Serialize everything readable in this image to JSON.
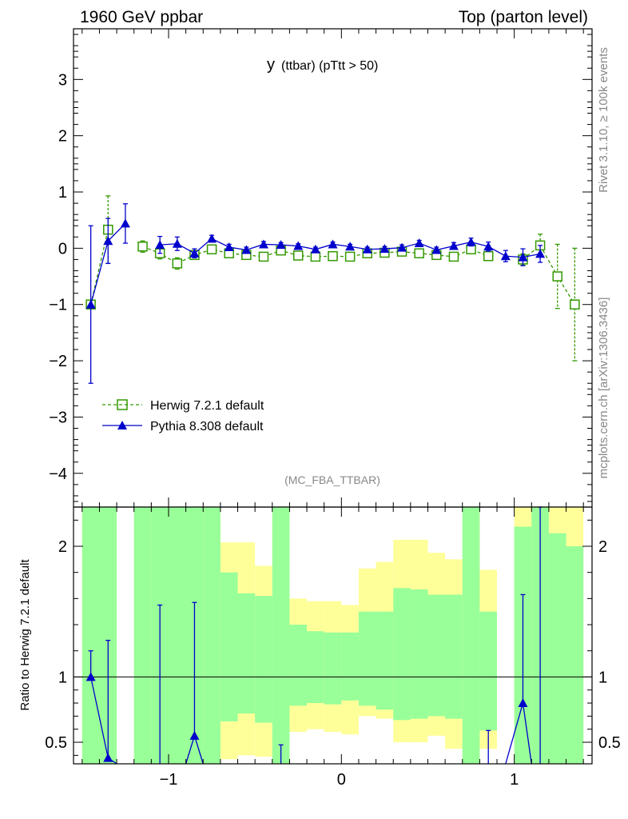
{
  "header": {
    "left": "1960 GeV ppbar",
    "right": "Top (parton level)"
  },
  "side_labels": {
    "rivet": "Rivet 3.1.10, ≥ 100k events",
    "mcplots": "mcplots.cern.ch [arXiv:1306.3436]"
  },
  "chart_data": [
    {
      "type": "line",
      "title": "y (ttbar) (pTtt > 50)",
      "title_main": "y",
      "title_sub": "(ttbar) (pTtt > 50)",
      "watermark": "(MC_FBA_TTBAR)",
      "xlabel": "",
      "ylabel": "",
      "xlim": [
        -1.55,
        1.45
      ],
      "ylim": [
        -4.6,
        3.9
      ],
      "x_ticks": [
        "−1",
        "0",
        "1"
      ],
      "y_ticks": [
        "−4",
        "−3",
        "−2",
        "−1",
        "0",
        "1",
        "2",
        "3"
      ],
      "legend_position": "bottom-left",
      "x": [
        -1.45,
        -1.35,
        -1.25,
        -1.15,
        -1.05,
        -0.95,
        -0.85,
        -0.75,
        -0.65,
        -0.55,
        -0.45,
        -0.35,
        -0.25,
        -0.15,
        -0.05,
        0.05,
        0.15,
        0.25,
        0.35,
        0.45,
        0.55,
        0.65,
        0.75,
        0.85,
        0.95,
        1.05,
        1.15,
        1.25,
        1.35
      ],
      "series": [
        {
          "name": "Herwig 7.2.1 default",
          "color": "#339900",
          "marker": "open-square",
          "dashed": true,
          "values": [
            -1.0,
            0.33,
            null,
            0.03,
            -0.09,
            -0.27,
            -0.12,
            -0.02,
            -0.09,
            -0.12,
            -0.15,
            -0.04,
            -0.13,
            -0.15,
            -0.14,
            -0.15,
            -0.09,
            -0.08,
            -0.06,
            -0.09,
            -0.12,
            -0.15,
            -0.02,
            -0.14,
            null,
            -0.2,
            0.05,
            -0.5,
            -1.0
          ],
          "errors": [
            0.0,
            0.6,
            null,
            0.1,
            0.1,
            0.1,
            0.06,
            0.06,
            0.05,
            0.05,
            0.05,
            0.04,
            0.04,
            0.04,
            0.04,
            0.04,
            0.04,
            0.04,
            0.05,
            0.05,
            0.05,
            0.05,
            0.06,
            0.06,
            null,
            0.1,
            0.2,
            0.57,
            1.0
          ]
        },
        {
          "name": "Pythia 8.308 default",
          "color": "#0000cc",
          "marker": "filled-triangle",
          "dashed": false,
          "values": [
            -1.0,
            0.13,
            0.44,
            null,
            0.06,
            0.08,
            -0.09,
            0.17,
            0.02,
            -0.03,
            0.07,
            0.06,
            0.04,
            -0.02,
            0.07,
            0.03,
            -0.02,
            -0.01,
            0.01,
            0.09,
            -0.03,
            0.04,
            0.11,
            0.03,
            -0.14,
            -0.16,
            -0.1,
            null,
            null
          ],
          "errors": [
            1.4,
            0.4,
            0.35,
            null,
            0.15,
            0.12,
            0.08,
            0.06,
            0.05,
            0.05,
            0.05,
            0.04,
            0.04,
            0.04,
            0.04,
            0.04,
            0.04,
            0.04,
            0.05,
            0.05,
            0.05,
            0.06,
            0.07,
            0.08,
            0.1,
            0.15,
            0.15,
            null,
            null
          ]
        }
      ]
    },
    {
      "type": "line",
      "ylabel": "Ratio to Herwig 7.2.1 default",
      "xlim": [
        -1.55,
        1.45
      ],
      "ylim": [
        0.335,
        2.3
      ],
      "x_ticks": [
        "−1",
        "0",
        "1"
      ],
      "y_ticks": [
        "0.5",
        "1",
        "2"
      ],
      "reference": 1.0,
      "band_x_edges": [
        -1.5,
        -1.4,
        -1.3,
        -1.2,
        -1.1,
        -1.0,
        -0.9,
        -0.8,
        -0.7,
        -0.6,
        -0.5,
        -0.4,
        -0.3,
        -0.2,
        -0.1,
        0.0,
        0.1,
        0.2,
        0.3,
        0.4,
        0.5,
        0.6,
        0.7,
        0.8,
        0.9,
        1.0,
        1.1,
        1.2,
        1.3,
        1.4
      ],
      "band_yellow": [
        [
          0.335,
          2.3
        ],
        [
          0.335,
          2.3
        ],
        null,
        [
          0.335,
          2.3
        ],
        [
          0.335,
          2.3
        ],
        [
          0.335,
          1.86
        ],
        [
          0.335,
          2.3
        ],
        [
          0.335,
          2.3
        ],
        [
          0.37,
          2.03
        ],
        [
          0.4,
          2.03
        ],
        [
          0.39,
          1.85
        ],
        [
          0.335,
          2.3
        ],
        [
          0.58,
          1.6
        ],
        [
          0.6,
          1.58
        ],
        [
          0.58,
          1.58
        ],
        [
          0.56,
          1.55
        ],
        [
          0.7,
          1.83
        ],
        [
          0.68,
          1.88
        ],
        [
          0.5,
          2.05
        ],
        [
          0.5,
          2.05
        ],
        [
          0.55,
          1.95
        ],
        [
          0.45,
          1.9
        ],
        [
          0.335,
          2.3
        ],
        [
          0.45,
          1.82
        ],
        null,
        [
          0.335,
          2.3
        ],
        [
          0.335,
          2.3
        ],
        [
          0.335,
          2.3
        ],
        [
          0.335,
          2.3
        ]
      ],
      "band_green": [
        [
          0.335,
          2.3
        ],
        [
          0.335,
          2.3
        ],
        null,
        [
          0.335,
          2.3
        ],
        [
          0.335,
          2.3
        ],
        [
          0.335,
          2.3
        ],
        [
          0.335,
          2.3
        ],
        [
          0.335,
          2.3
        ],
        [
          0.66,
          1.8
        ],
        [
          0.72,
          1.64
        ],
        [
          0.65,
          1.62
        ],
        [
          0.335,
          2.3
        ],
        [
          0.78,
          1.4
        ],
        [
          0.8,
          1.35
        ],
        [
          0.79,
          1.34
        ],
        [
          0.82,
          1.34
        ],
        [
          0.78,
          1.5
        ],
        [
          0.75,
          1.5
        ],
        [
          0.67,
          1.68
        ],
        [
          0.68,
          1.67
        ],
        [
          0.7,
          1.63
        ],
        [
          0.68,
          1.63
        ],
        [
          0.335,
          2.3
        ],
        [
          0.59,
          1.5
        ],
        null,
        [
          0.335,
          2.15
        ],
        [
          0.335,
          2.3
        ],
        [
          0.335,
          2.1
        ],
        [
          0.335,
          2.0
        ]
      ],
      "series": [
        {
          "name": "Pythia 8.308 default",
          "color": "#0000cc",
          "x": [
            -1.45,
            -1.35,
            -1.05,
            -0.85,
            -0.35,
            0.85,
            1.05,
            1.15
          ],
          "values": [
            1.0,
            0.38,
            0.2,
            0.55,
            0.2,
            0.2,
            0.8,
            0.2
          ],
          "err_up": [
            1.2,
            1.28,
            1.55,
            1.57,
            0.48,
            0.59,
            1.63,
            2.3
          ],
          "markers": [
            true,
            true,
            false,
            true,
            false,
            false,
            true,
            false
          ]
        }
      ]
    }
  ]
}
